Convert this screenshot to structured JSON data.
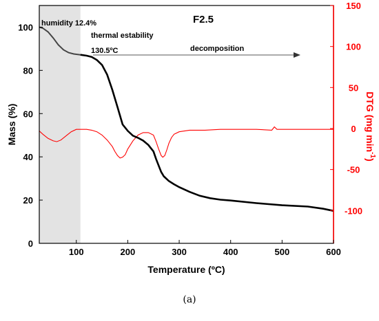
{
  "chart_data": {
    "type": "line",
    "title": "F2.5",
    "xlabel": "Temperature (ºC)",
    "ylabel_left": "Mass (%)",
    "ylabel_right_main": "DTG (mg min",
    "ylabel_right_sup": "-1",
    "ylabel_right_close": ")",
    "xlim": [
      28,
      600
    ],
    "ylim_left": [
      0,
      110
    ],
    "ylim_right": [
      -140,
      150
    ],
    "x_ticks": [
      100,
      200,
      300,
      400,
      500,
      600
    ],
    "y_left_ticks": [
      0,
      20,
      40,
      60,
      80,
      100
    ],
    "y_right_ticks": [
      150,
      100,
      50,
      0,
      -50,
      -100
    ],
    "grid": false,
    "colors": {
      "mass": "#000000",
      "dtg": "#ff0000",
      "shade": "#e3e3e3",
      "arrow": "#555555"
    },
    "shaded_region": {
      "x": [
        28,
        108
      ]
    },
    "annotations": {
      "humidity": "humidity 12.4%",
      "thermal": "thermal estability",
      "thermal_value": "130.5ºC",
      "decomposition": "decomposition"
    },
    "series": [
      {
        "axis": "left",
        "x": [
          28,
          35,
          45,
          55,
          65,
          75,
          85,
          95,
          108,
          120,
          130,
          140,
          150,
          160,
          170,
          180,
          190,
          200,
          210,
          220,
          230,
          240,
          250,
          255,
          260,
          265,
          270,
          280,
          290,
          300,
          320,
          340,
          360,
          380,
          400,
          450,
          500,
          550,
          580,
          600
        ],
        "values": [
          100,
          99.5,
          97.8,
          95,
          91.8,
          89.5,
          88.2,
          87.6,
          87.2,
          86.8,
          86.2,
          84.8,
          82.5,
          78,
          71,
          63,
          55,
          52,
          49.8,
          48.8,
          47.5,
          45.5,
          42.5,
          39,
          36,
          33,
          31,
          28.8,
          27.3,
          26,
          23.8,
          22,
          20.9,
          20.2,
          19.8,
          18.6,
          17.6,
          17,
          16,
          15
        ]
      },
      {
        "axis": "right",
        "x": [
          28,
          35,
          45,
          55,
          62,
          70,
          80,
          90,
          100,
          110,
          120,
          130,
          140,
          150,
          160,
          170,
          175,
          180,
          185,
          190,
          195,
          200,
          210,
          220,
          230,
          240,
          250,
          255,
          260,
          265,
          268,
          272,
          276,
          280,
          285,
          290,
          300,
          320,
          350,
          380,
          400,
          450,
          480,
          485,
          490,
          500,
          520,
          550,
          580,
          600
        ],
        "values": [
          -3,
          -7,
          -12,
          -15,
          -16,
          -14,
          -9,
          -4,
          -1,
          -1,
          -1,
          -2,
          -4,
          -8,
          -14,
          -22,
          -28,
          -33,
          -36,
          -35,
          -32,
          -25,
          -15,
          -8,
          -5,
          -5,
          -8,
          -16,
          -25,
          -33,
          -35,
          -33,
          -26,
          -18,
          -11,
          -7,
          -4,
          -2,
          -2,
          -1,
          -1,
          -1,
          -2,
          2,
          -1,
          -1,
          -1,
          -1,
          -1,
          -1
        ]
      }
    ]
  },
  "caption": "(a)"
}
